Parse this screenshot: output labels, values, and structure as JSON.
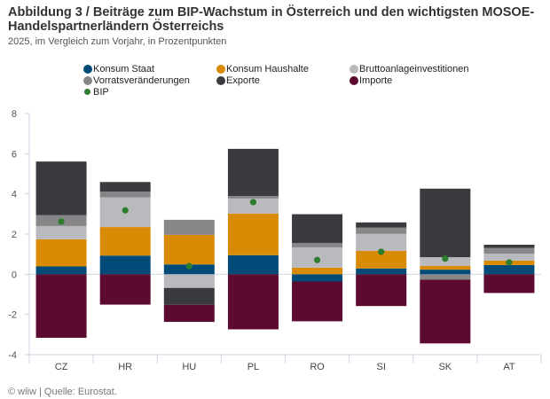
{
  "header": {
    "title": "Abbildung 3 / Beiträge zum BIP-Wachstum in Österreich und den wichtigsten MOSOE-Handelspartnerländern Österreichs",
    "subtitle": "2025, im Vergleich zum Vorjahr, in Prozentpunkten"
  },
  "footer": {
    "source": "© wiiw | Quelle: Eurostat."
  },
  "chart_data": {
    "type": "bar",
    "stacked": true,
    "title": "Abbildung 3 / Beiträge zum BIP-Wachstum in Österreich und den wichtigsten MOSOE-Handelspartnerländern Österreichs",
    "subtitle": "2025, im Vergleich zum Vorjahr, in Prozentpunkten",
    "xlabel": "",
    "ylabel": "",
    "ylim": [
      -4,
      8
    ],
    "yticks": [
      -4,
      -2,
      0,
      2,
      4,
      6,
      8
    ],
    "grid": false,
    "legend_position": "top",
    "categories": [
      "CZ",
      "HR",
      "HU",
      "PL",
      "RO",
      "SI",
      "SK",
      "AT"
    ],
    "series": [
      {
        "name": "Konsum Staat",
        "color": "#004b78",
        "values": [
          0.39,
          0.93,
          0.49,
          0.95,
          -0.36,
          0.29,
          0.23,
          0.46
        ]
      },
      {
        "name": "Konsum Haushalte",
        "color": "#d98b05",
        "values": [
          1.35,
          1.42,
          1.47,
          2.07,
          0.33,
          0.88,
          0.19,
          0.22
        ]
      },
      {
        "name": "Bruttoanlageinvestitionen",
        "color": "#b9babd",
        "values": [
          0.66,
          1.48,
          -0.68,
          0.75,
          1.01,
          0.84,
          0.43,
          0.35
        ]
      },
      {
        "name": "Vorratsveränderungen",
        "color": "#87878a",
        "values": [
          0.54,
          0.28,
          0.75,
          0.12,
          0.21,
          0.31,
          -0.27,
          0.28
        ]
      },
      {
        "name": "Exporte",
        "color": "#393b3f",
        "values": [
          2.67,
          0.48,
          -0.84,
          2.35,
          1.44,
          0.26,
          3.41,
          0.16
        ]
      },
      {
        "name": "Importe",
        "color": "#5c0a2f",
        "values": [
          -3.16,
          -1.51,
          -0.85,
          -2.74,
          -1.98,
          -1.58,
          -3.17,
          -0.93
        ]
      }
    ],
    "points": {
      "name": "BIP",
      "color": "#2e7d2e",
      "values": [
        2.62,
        3.18,
        0.41,
        3.59,
        0.71,
        1.12,
        0.78,
        0.59
      ]
    }
  }
}
